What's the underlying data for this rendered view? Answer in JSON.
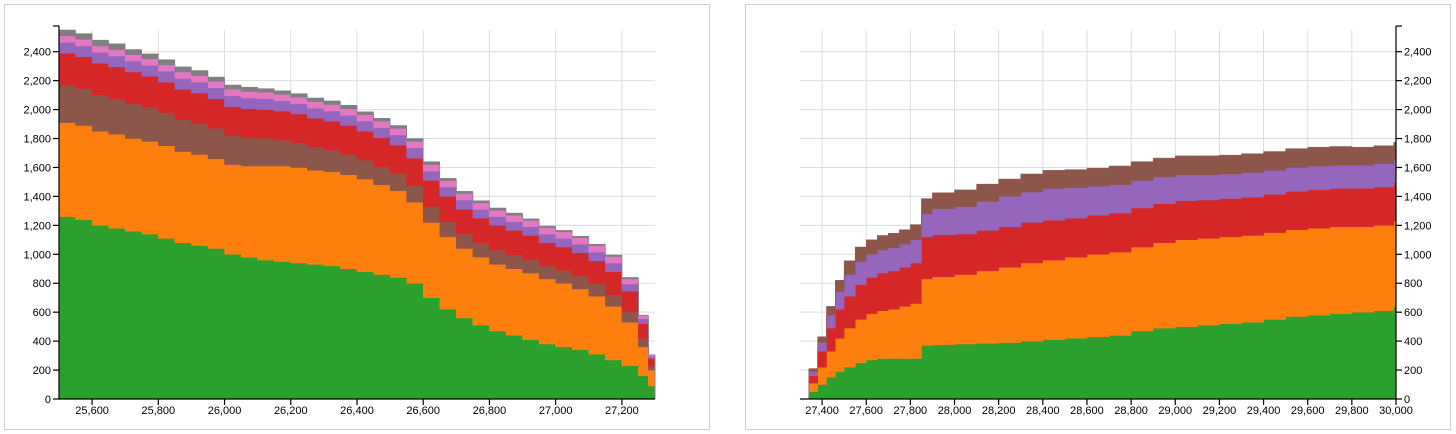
{
  "colors": {
    "green": "#2ca02c",
    "orange": "#ff7f0e",
    "brown": "#8c564b",
    "red": "#d62728",
    "purple": "#9467bd",
    "pink": "#e377c2",
    "gray": "#7f7f7f"
  },
  "chart_data": [
    {
      "type": "area",
      "stacked": true,
      "step": true,
      "title": "",
      "xlabel": "",
      "ylabel": "",
      "xlim": [
        25500,
        27300
      ],
      "ylim": [
        0,
        2550
      ],
      "grid": true,
      "y_axis_side": "left",
      "xticks": [
        25600,
        25800,
        26000,
        26200,
        26400,
        26600,
        26800,
        27000,
        27200
      ],
      "xtick_labels": [
        "25,600",
        "25,800",
        "26,000",
        "26,200",
        "26,400",
        "26,600",
        "26,800",
        "27,000",
        "27,200"
      ],
      "yticks": [
        0,
        200,
        400,
        600,
        800,
        1000,
        1200,
        1400,
        1600,
        1800,
        2000,
        2200,
        2400
      ],
      "ytick_labels": [
        "0",
        "200",
        "400",
        "600",
        "800",
        "1,000",
        "1,200",
        "1,400",
        "1,600",
        "1,800",
        "2,000",
        "2,200",
        "2,400"
      ],
      "x": [
        25500,
        25550,
        25600,
        25650,
        25700,
        25750,
        25800,
        25850,
        25900,
        25950,
        26000,
        26050,
        26100,
        26150,
        26200,
        26250,
        26300,
        26350,
        26400,
        26450,
        26500,
        26550,
        26600,
        26650,
        26700,
        26750,
        26800,
        26850,
        26900,
        26950,
        27000,
        27050,
        27100,
        27150,
        27200,
        27250,
        27280,
        27300
      ],
      "series": [
        {
          "color": "green",
          "values": [
            1260,
            1240,
            1200,
            1180,
            1160,
            1140,
            1110,
            1080,
            1060,
            1040,
            1000,
            980,
            960,
            950,
            940,
            930,
            920,
            900,
            880,
            860,
            840,
            800,
            700,
            620,
            560,
            510,
            470,
            440,
            410,
            380,
            360,
            340,
            310,
            270,
            230,
            160,
            90,
            0
          ]
        },
        {
          "color": "orange",
          "values": [
            650,
            650,
            650,
            650,
            640,
            640,
            640,
            630,
            630,
            620,
            620,
            630,
            650,
            660,
            660,
            650,
            650,
            650,
            640,
            620,
            600,
            560,
            520,
            500,
            480,
            470,
            460,
            460,
            460,
            450,
            440,
            420,
            400,
            370,
            300,
            200,
            110,
            0
          ]
        },
        {
          "color": "brown",
          "values": [
            260,
            255,
            250,
            245,
            240,
            235,
            230,
            220,
            215,
            210,
            200,
            195,
            190,
            180,
            170,
            160,
            150,
            140,
            130,
            125,
            120,
            115,
            110,
            105,
            100,
            100,
            100,
            95,
            95,
            90,
            90,
            90,
            85,
            80,
            75,
            60,
            30,
            0
          ]
        },
        {
          "color": "red",
          "values": [
            220,
            220,
            220,
            220,
            220,
            215,
            210,
            210,
            210,
            205,
            200,
            200,
            200,
            200,
            200,
            200,
            200,
            200,
            200,
            200,
            195,
            190,
            180,
            175,
            170,
            170,
            170,
            170,
            165,
            160,
            160,
            160,
            160,
            160,
            140,
            100,
            50,
            0
          ]
        },
        {
          "color": "purple",
          "values": [
            75,
            75,
            75,
            75,
            75,
            75,
            75,
            75,
            75,
            75,
            75,
            75,
            75,
            70,
            70,
            70,
            70,
            70,
            70,
            70,
            70,
            70,
            65,
            65,
            65,
            60,
            60,
            60,
            60,
            60,
            60,
            60,
            60,
            60,
            50,
            35,
            15,
            0
          ]
        },
        {
          "color": "pink",
          "values": [
            45,
            45,
            45,
            45,
            45,
            45,
            45,
            45,
            45,
            45,
            45,
            45,
            45,
            45,
            45,
            45,
            45,
            45,
            45,
            45,
            45,
            45,
            45,
            45,
            45,
            45,
            45,
            45,
            45,
            45,
            45,
            45,
            45,
            45,
            35,
            20,
            10,
            0
          ]
        },
        {
          "color": "gray",
          "values": [
            40,
            40,
            40,
            40,
            35,
            35,
            35,
            35,
            35,
            30,
            30,
            30,
            25,
            25,
            25,
            25,
            25,
            25,
            20,
            20,
            20,
            20,
            20,
            15,
            15,
            15,
            15,
            15,
            10,
            10,
            10,
            10,
            10,
            10,
            10,
            5,
            0,
            0
          ]
        }
      ]
    },
    {
      "type": "area",
      "stacked": true,
      "step": true,
      "title": "",
      "xlabel": "",
      "ylabel": "",
      "xlim": [
        27300,
        30000
      ],
      "ylim": [
        0,
        2550
      ],
      "grid": true,
      "y_axis_side": "right",
      "xticks": [
        27400,
        27600,
        27800,
        28000,
        28200,
        28400,
        28600,
        28800,
        29000,
        29200,
        29400,
        29600,
        29800,
        30000
      ],
      "xtick_labels": [
        "27,400",
        "27,600",
        "27,800",
        "28,000",
        "28,200",
        "28,400",
        "28,600",
        "28,800",
        "29,000",
        "29,200",
        "29,400",
        "29,600",
        "29,800",
        "30,000"
      ],
      "yticks": [
        0,
        200,
        400,
        600,
        800,
        1000,
        1200,
        1400,
        1600,
        1800,
        2000,
        2200,
        2400
      ],
      "ytick_labels": [
        "0",
        "200",
        "400",
        "600",
        "800",
        "1,000",
        "1,200",
        "1,400",
        "1,600",
        "1,800",
        "2,000",
        "2,200",
        "2,400"
      ],
      "x": [
        27300,
        27340,
        27380,
        27420,
        27460,
        27500,
        27550,
        27600,
        27650,
        27700,
        27750,
        27800,
        27850,
        27900,
        28000,
        28100,
        28200,
        28300,
        28400,
        28500,
        28600,
        28700,
        28800,
        28900,
        29000,
        29100,
        29200,
        29300,
        29400,
        29500,
        29600,
        29700,
        29800,
        29900,
        29990,
        30000
      ],
      "series": [
        {
          "color": "green",
          "values": [
            0,
            50,
            100,
            150,
            190,
            220,
            250,
            270,
            280,
            280,
            280,
            280,
            370,
            375,
            380,
            385,
            390,
            400,
            410,
            420,
            430,
            440,
            470,
            490,
            500,
            510,
            520,
            530,
            550,
            570,
            580,
            590,
            600,
            610,
            640,
            650
          ]
        },
        {
          "color": "orange",
          "values": [
            0,
            60,
            120,
            180,
            230,
            270,
            300,
            320,
            330,
            340,
            360,
            380,
            460,
            470,
            480,
            500,
            520,
            540,
            550,
            560,
            570,
            575,
            580,
            590,
            600,
            600,
            600,
            600,
            600,
            600,
            600,
            600,
            590,
            590,
            590,
            590
          ]
        },
        {
          "color": "red",
          "values": [
            0,
            50,
            110,
            160,
            200,
            220,
            240,
            250,
            260,
            265,
            270,
            280,
            290,
            290,
            280,
            280,
            280,
            280,
            275,
            270,
            270,
            270,
            270,
            270,
            270,
            265,
            265,
            265,
            265,
            265,
            265,
            265,
            265,
            265,
            265,
            265
          ]
        },
        {
          "color": "purple",
          "values": [
            0,
            30,
            60,
            90,
            120,
            150,
            160,
            160,
            160,
            160,
            160,
            160,
            160,
            180,
            190,
            200,
            210,
            210,
            220,
            210,
            200,
            195,
            190,
            185,
            180,
            175,
            170,
            170,
            165,
            165,
            165,
            160,
            160,
            160,
            160,
            160
          ]
        },
        {
          "color": "brown",
          "values": [
            0,
            20,
            40,
            60,
            80,
            95,
            100,
            100,
            100,
            100,
            100,
            105,
            105,
            110,
            115,
            120,
            120,
            125,
            125,
            125,
            125,
            130,
            130,
            130,
            130,
            130,
            130,
            130,
            130,
            130,
            130,
            130,
            125,
            125,
            120,
            120
          ]
        }
      ]
    }
  ]
}
